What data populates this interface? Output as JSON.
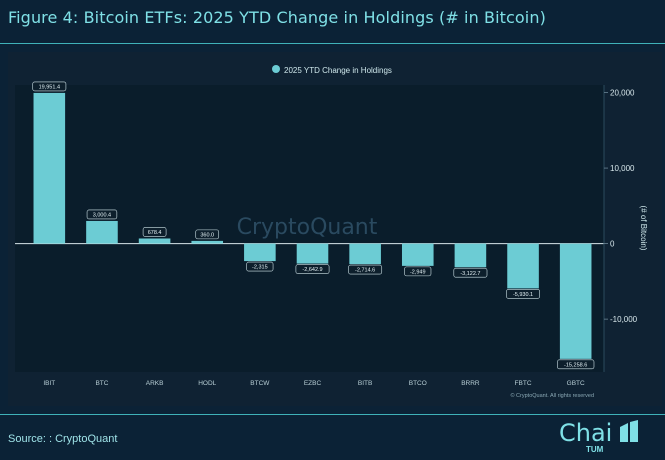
{
  "page": {
    "title": "Figure 4: Bitcoin ETFs: 2025  YTD Change in Holdings (# in Bitcoin)",
    "source": "Source: : CryptoQuant",
    "logo_text": "Chai",
    "logo_subtext": "TUM"
  },
  "colors": {
    "bar": "#6cccd4",
    "accent": "#3fb2b9",
    "background": "#0b2236",
    "plot_background": "#0a1d2b"
  },
  "chart_data": {
    "type": "bar",
    "legend": "2025 YTD Change in Holdings",
    "legend_position": "top-center",
    "watermark": "CryptoQuant",
    "credit": "© CryptoQuant. All rights reserved",
    "ylabel": "(# of Bitcoin)",
    "ylim": [
      -17000,
      21000
    ],
    "yticks": [
      20000,
      10000,
      0,
      -10000
    ],
    "ytick_labels": [
      "20,000",
      "10,000",
      "0",
      "-10,000"
    ],
    "y_axis_side": "right",
    "grid": false,
    "categories": [
      "IBIT",
      "BTC",
      "ARKB",
      "HODL",
      "BTCW",
      "EZBC",
      "BITB",
      "BTCO",
      "BRRR",
      "FBTC",
      "GBTC"
    ],
    "values": [
      19951.4,
      3000.4,
      678.4,
      360.0,
      -2315,
      -2642.9,
      -2714.6,
      -2949,
      -3122.7,
      -5930.1,
      -15258.6
    ],
    "value_labels": [
      "19,951.4",
      "3,000.4",
      "678.4",
      "360.0",
      "-2,315",
      "-2,642.9",
      "-2,714.6",
      "-2,949",
      "-3,122.7",
      "-5,930.1",
      "-15,258.6"
    ]
  }
}
